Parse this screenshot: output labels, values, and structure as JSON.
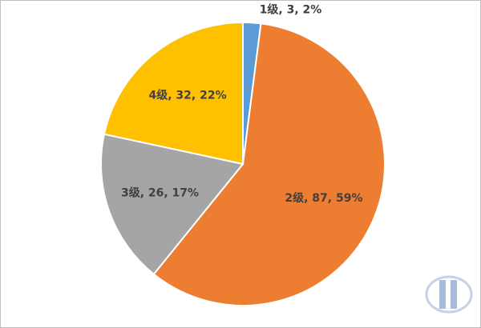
{
  "chart_data": {
    "type": "pie",
    "values": [
      3,
      87,
      26,
      32
    ],
    "value_labels": [
      "1级, 3, 2%",
      "2级, 87, 59%",
      "3级, 26, 17%",
      "4级, 32, 22%"
    ],
    "colors": [
      "#5b9bd5",
      "#ed7d31",
      "#a5a5a5",
      "#ffc000"
    ]
  }
}
